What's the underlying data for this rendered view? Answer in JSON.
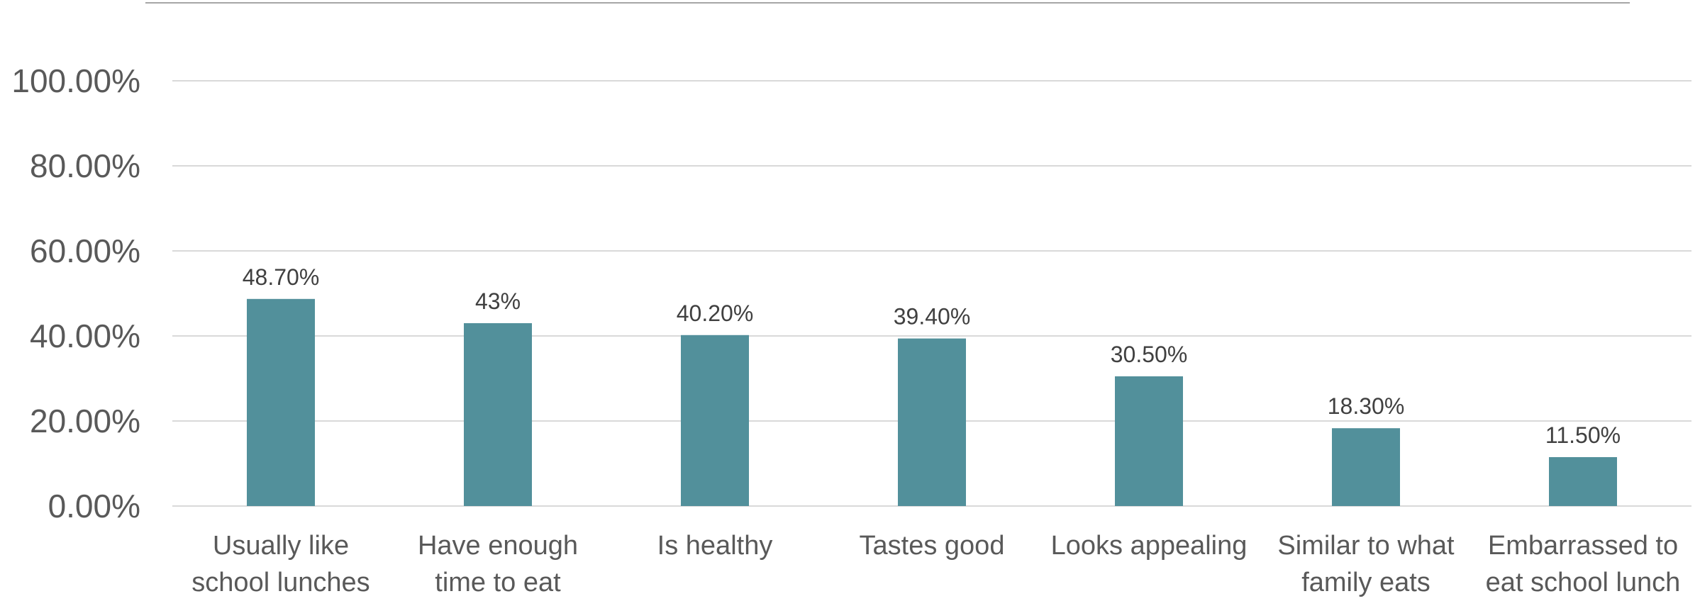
{
  "chart_data": {
    "type": "bar",
    "categories": [
      [
        "Usually like",
        "school lunches"
      ],
      [
        "Have enough",
        "time to eat"
      ],
      [
        "Is healthy"
      ],
      [
        "Tastes good"
      ],
      [
        "Looks appealing"
      ],
      [
        "Similar to what",
        "family eats"
      ],
      [
        "Embarrassed to",
        "eat school lunch"
      ]
    ],
    "values": [
      48.7,
      43,
      40.2,
      39.4,
      30.5,
      18.3,
      11.5
    ],
    "data_labels": [
      "48.70%",
      "43%",
      "40.20%",
      "39.40%",
      "30.50%",
      "18.30%",
      "11.50%"
    ],
    "y_ticks": [
      0,
      20,
      40,
      60,
      80,
      100
    ],
    "y_tick_labels": [
      "0.00%",
      "20.00%",
      "40.00%",
      "60.00%",
      "80.00%",
      "100.00%"
    ],
    "ylim": [
      0,
      100
    ],
    "grid": true,
    "legend": "none",
    "title": "",
    "xlabel": "",
    "ylabel": "",
    "bar_color": "#52909b"
  }
}
